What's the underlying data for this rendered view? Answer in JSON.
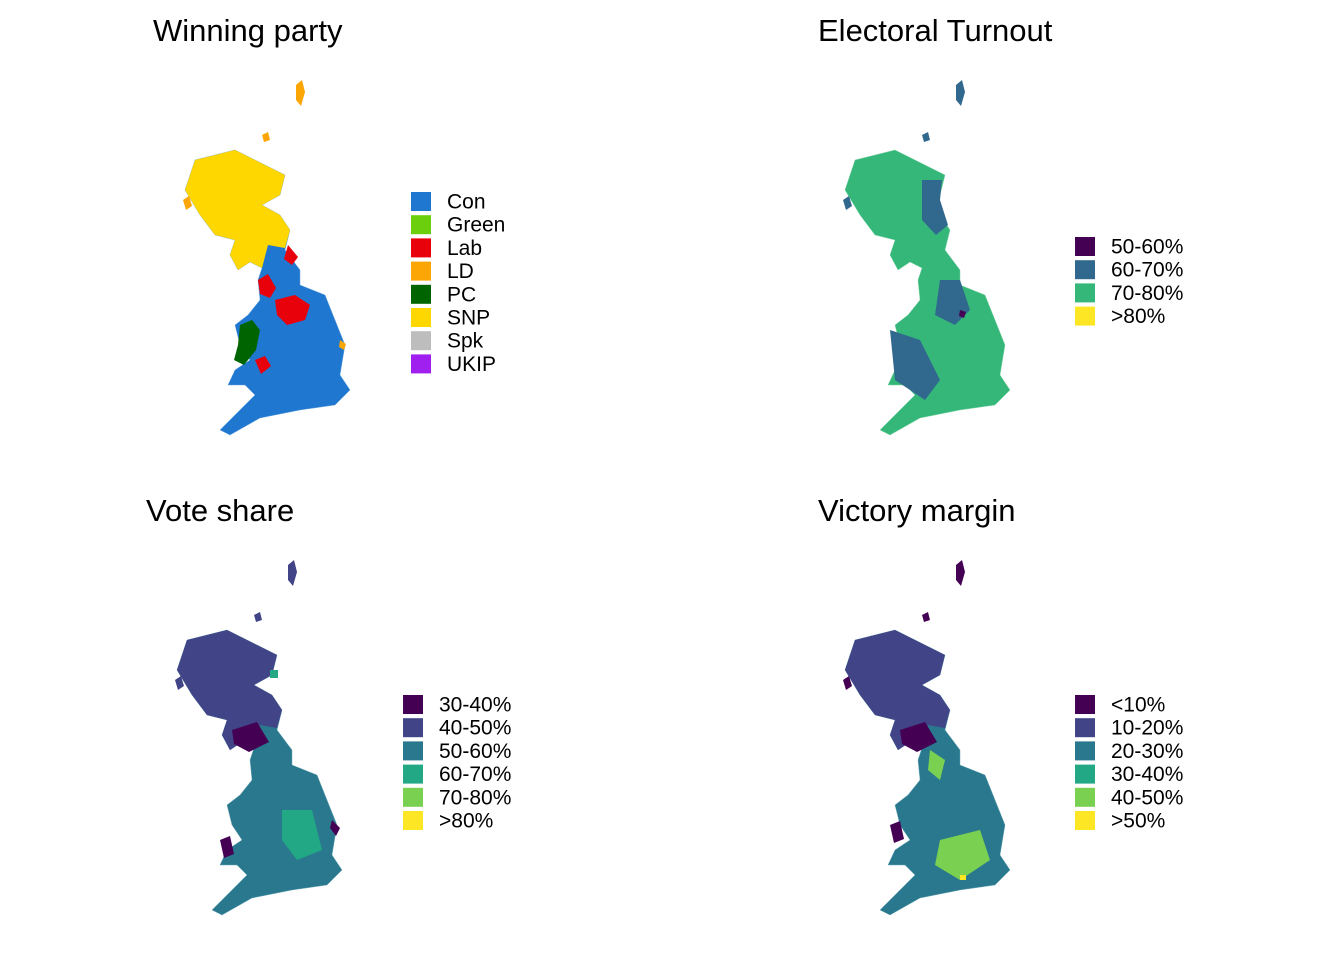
{
  "panels": [
    {
      "title": "Winning party",
      "legend": [
        {
          "label": "Con",
          "color": "#1f77d0"
        },
        {
          "label": "Green",
          "color": "#6ccf0e"
        },
        {
          "label": "Lab",
          "color": "#e8000b"
        },
        {
          "label": "LD",
          "color": "#fca605"
        },
        {
          "label": "PC",
          "color": "#006400"
        },
        {
          "label": "SNP",
          "color": "#ffd700"
        },
        {
          "label": "Spk",
          "color": "#bdbdbd"
        },
        {
          "label": "UKIP",
          "color": "#a020f0"
        }
      ]
    },
    {
      "title": "Electoral Turnout",
      "legend": [
        {
          "label": "50-60%",
          "color": "#440154"
        },
        {
          "label": "60-70%",
          "color": "#31688e"
        },
        {
          "label": "70-80%",
          "color": "#35b779"
        },
        {
          "label": ">80%",
          "color": "#fde725"
        }
      ]
    },
    {
      "title": "Vote share",
      "legend": [
        {
          "label": "30-40%",
          "color": "#440154"
        },
        {
          "label": "40-50%",
          "color": "#414487"
        },
        {
          "label": "50-60%",
          "color": "#2a788e"
        },
        {
          "label": "60-70%",
          "color": "#22a884"
        },
        {
          "label": "70-80%",
          "color": "#7ad151"
        },
        {
          "label": ">80%",
          "color": "#fde725"
        }
      ]
    },
    {
      "title": "Victory margin",
      "legend": [
        {
          "label": "<10%",
          "color": "#440154"
        },
        {
          "label": "10-20%",
          "color": "#414487"
        },
        {
          "label": "20-30%",
          "color": "#2a788e"
        },
        {
          "label": "30-40%",
          "color": "#22a884"
        },
        {
          "label": "40-50%",
          "color": "#7ad151"
        },
        {
          "label": ">50%",
          "color": "#fde725"
        }
      ]
    }
  ]
}
